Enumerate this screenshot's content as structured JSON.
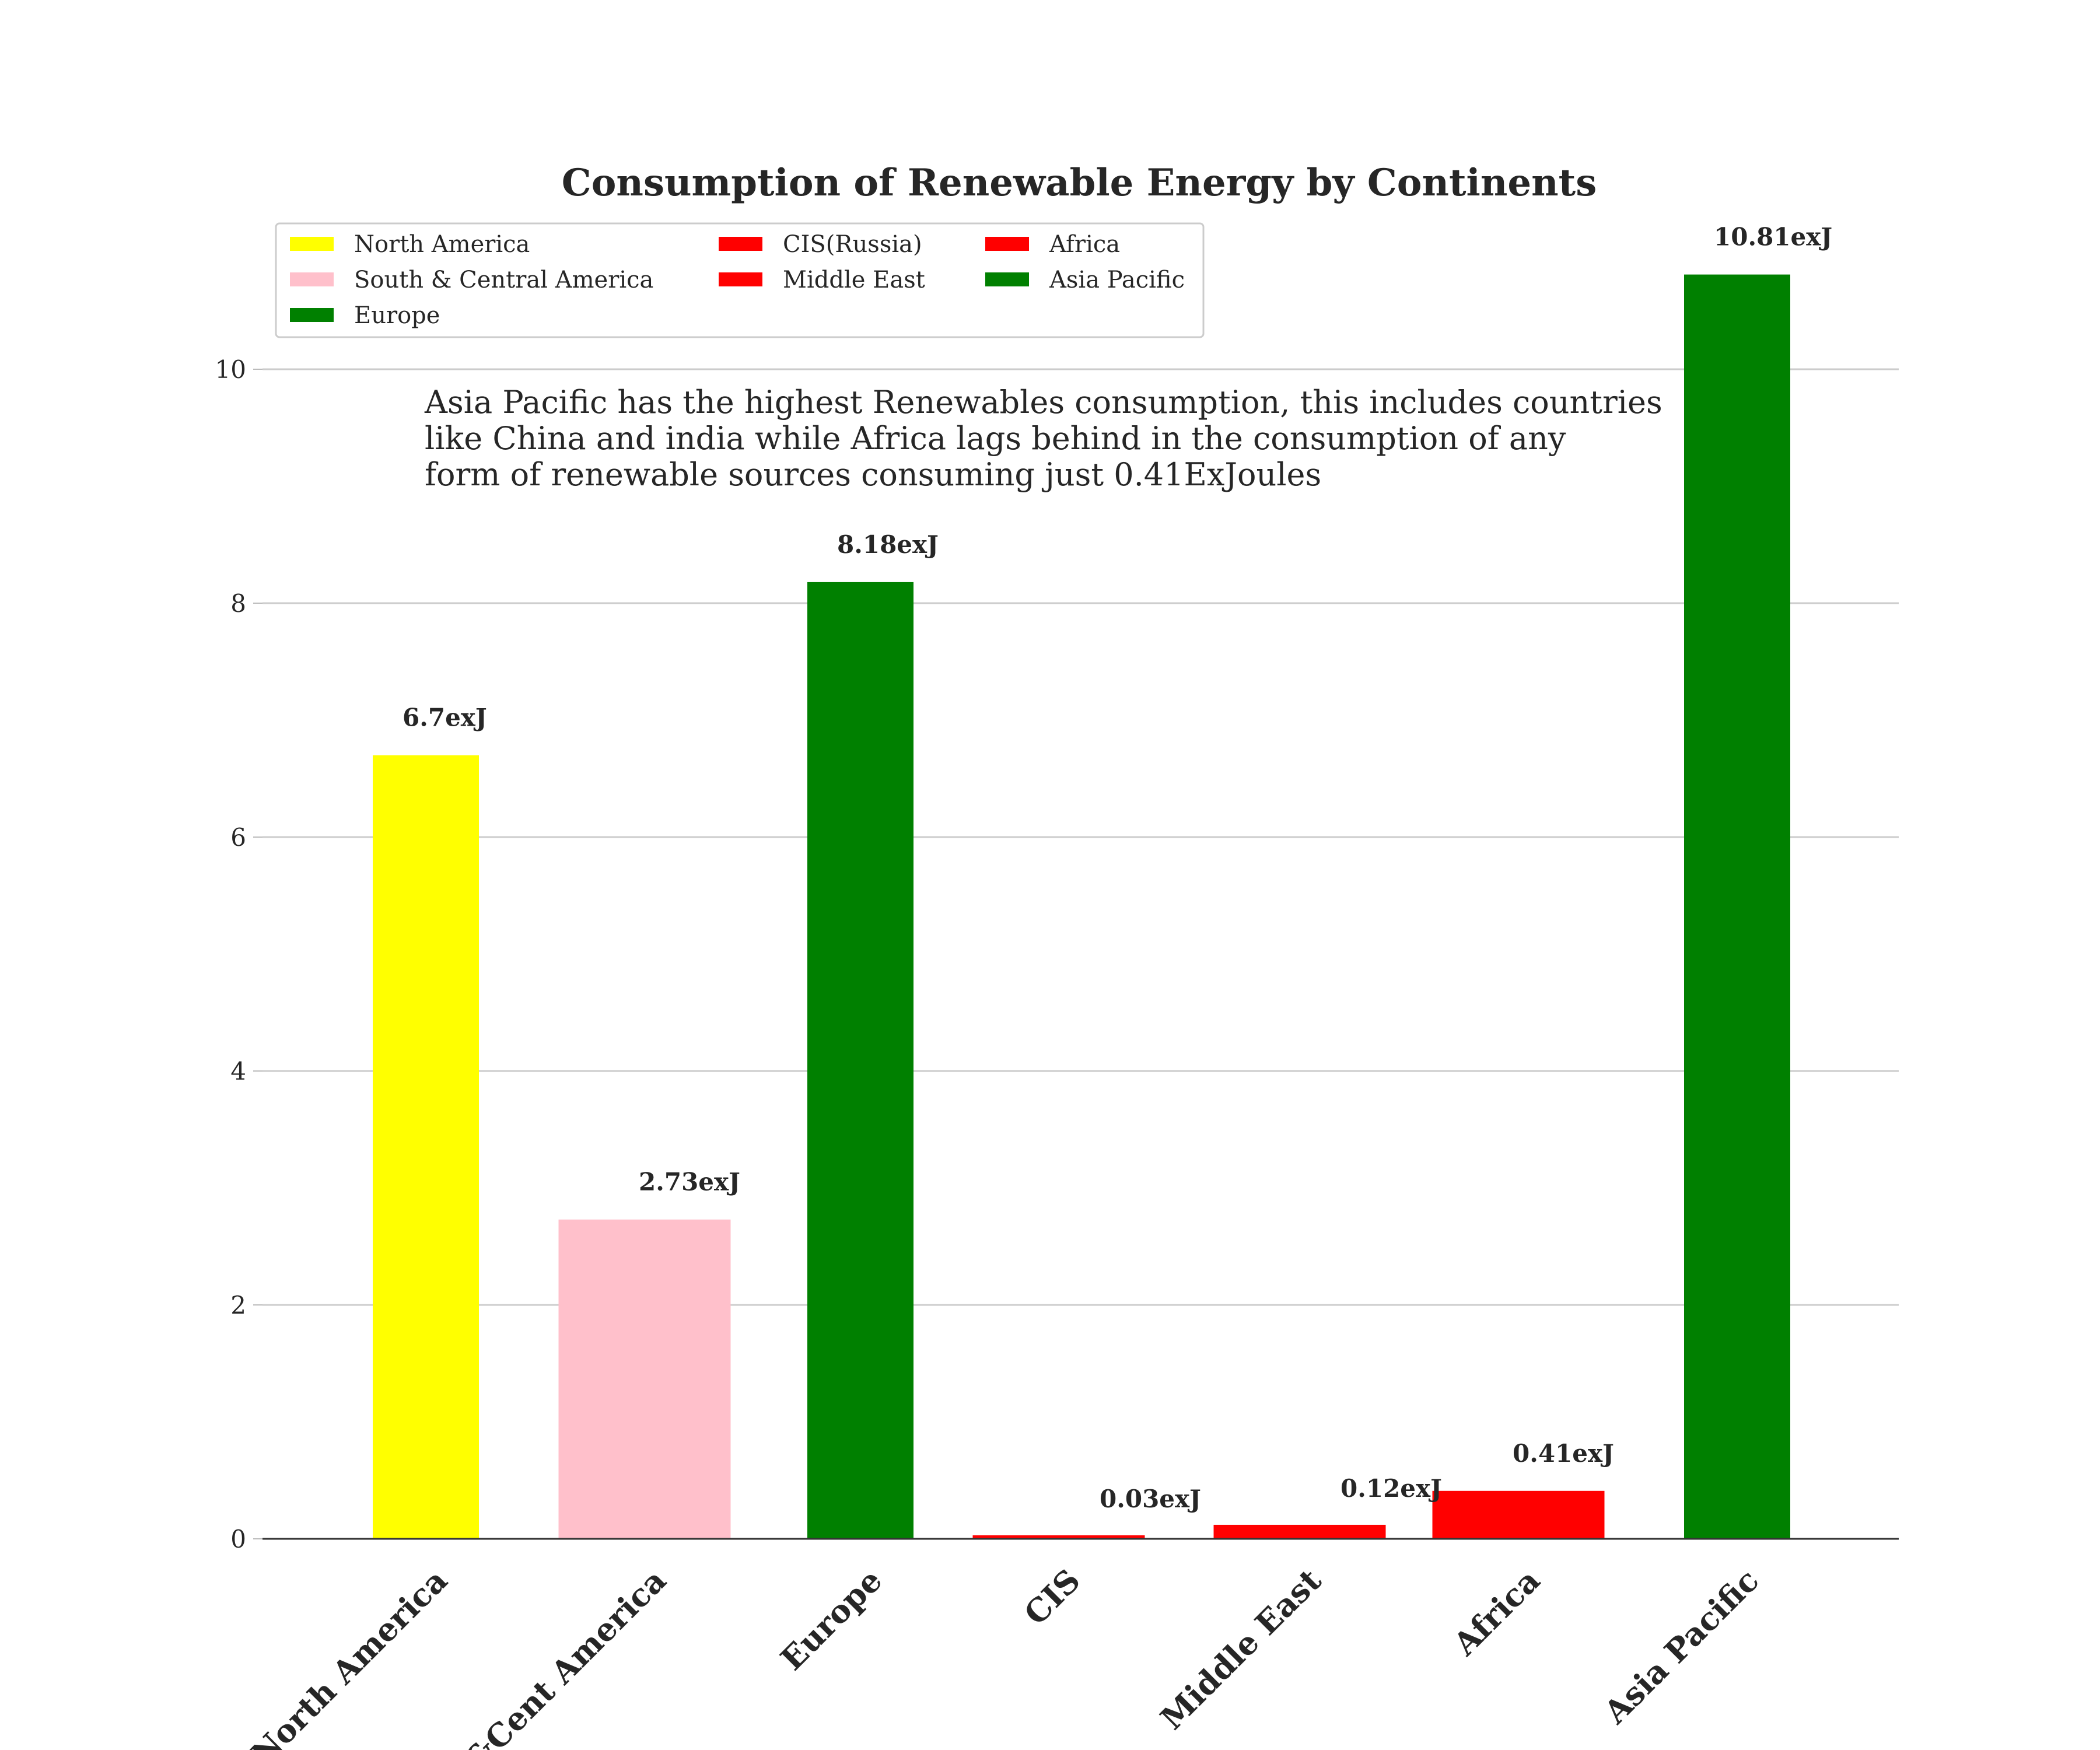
{
  "chart_data": {
    "type": "bar",
    "title": "Consumption of Renewable Energy by Continents",
    "xlabel": "",
    "ylabel": "",
    "categories": [
      "North America",
      "S&Cent America",
      "Europe",
      "CIS",
      "Middle East",
      "Africa",
      "Asia Pacific"
    ],
    "values": [
      6.7,
      2.73,
      8.18,
      0.03,
      0.12,
      0.41,
      10.81
    ],
    "value_labels": [
      "6.7exJ",
      "2.73exJ",
      "8.18exJ",
      "0.03exJ",
      "0.12exJ",
      "0.41exJ",
      "10.81exJ"
    ],
    "bar_colors": [
      "#ffff00",
      "#ffc0cb",
      "#008000",
      "#ff0000",
      "#ff0000",
      "#ff0000",
      "#008000"
    ],
    "ylim": [
      0,
      11.3
    ],
    "yticks": [
      0,
      2,
      4,
      6,
      8,
      10
    ],
    "ytick_labels": [
      "0",
      "2",
      "4",
      "6",
      "8",
      "10"
    ],
    "grid": "horizontal",
    "legend": {
      "placement": "upper-left",
      "entries": [
        {
          "label": "North America",
          "color": "#ffff00"
        },
        {
          "label": "South & Central America",
          "color": "#ffc0cb"
        },
        {
          "label": "Europe",
          "color": "#008000"
        },
        {
          "label": "CIS(Russia)",
          "color": "#ff0000"
        },
        {
          "label": "Middle East",
          "color": "#ff0000"
        },
        {
          "label": "Africa",
          "color": "#ff0000"
        },
        {
          "label": "Asia Pacific",
          "color": "#008000"
        }
      ]
    },
    "annotation": [
      "Asia Pacific has the highest Renewables consumption, this includes countries",
      "like China and india while Africa lags behind in the consumption of any",
      "form of renewable sources consuming just 0.41ExJoules"
    ]
  }
}
